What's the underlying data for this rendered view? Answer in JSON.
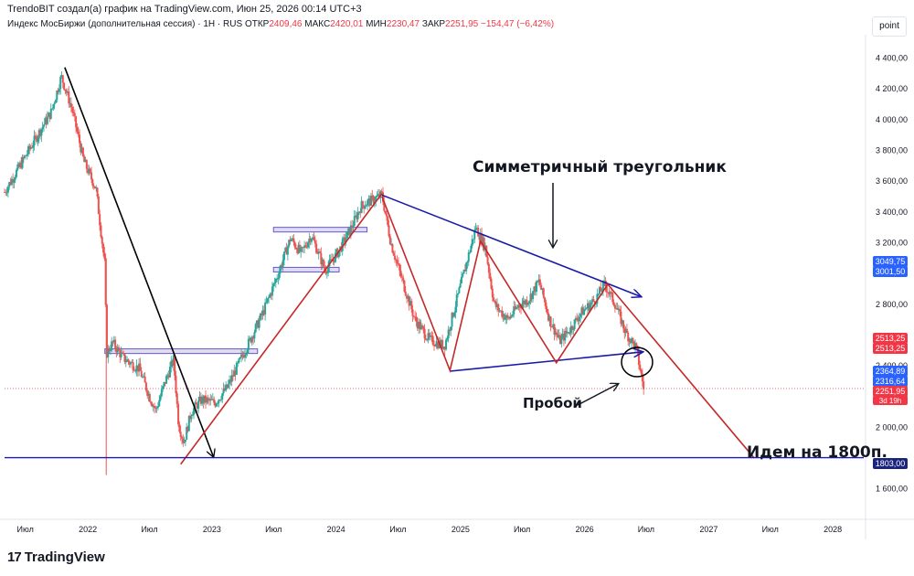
{
  "header": {
    "author_line": "TrendoBIT создал(а) график на TradingView.com, Июн 25, 2026 00:14 UTC+3"
  },
  "symbol": {
    "name": "Индекс МосБиржи (дополнительная сессия) · 1Н · RUS",
    "open_label": "ОТКР",
    "open": "2409,46",
    "high_label": "МАКС",
    "high": "2420,01",
    "low_label": "МИН",
    "low": "2230,47",
    "close_label": "ЗАКР",
    "close": "2251,95",
    "change": "−154,47 (−6,42%)"
  },
  "scale_mode": "point",
  "logo": {
    "text": "TradingView",
    "mark": "17"
  },
  "colors": {
    "up": "#26a69a",
    "down": "#ef5350",
    "red_line": "#c62828",
    "blue_line": "#1a1aa8",
    "black_line": "#000000"
  },
  "chart_data": {
    "type": "candlestick",
    "title": "",
    "x_axis_labels": [
      "Июл",
      "2022",
      "Июл",
      "2023",
      "Июл",
      "2024",
      "Июл",
      "2025",
      "Июл",
      "2026",
      "Июл",
      "2027",
      "Июл",
      "2028"
    ],
    "x_axis_dates": [
      "2021-07-01",
      "2022-01-01",
      "2022-07-01",
      "2023-01-01",
      "2023-07-01",
      "2024-01-01",
      "2024-07-01",
      "2025-01-01",
      "2025-07-01",
      "2026-01-01",
      "2026-07-01",
      "2027-01-01",
      "2027-07-01",
      "2028-01-01"
    ],
    "y_ticks": [
      1600,
      2000,
      2200,
      2400,
      2800,
      3200,
      3400,
      3600,
      3800,
      4000,
      4200,
      4400
    ],
    "y_tick_labels": [
      "1 600,00",
      "2 000,00",
      "2 200,00",
      "2 400,00",
      "2 800,00",
      "3 200,00",
      "3 400,00",
      "3 600,00",
      "3 800,00",
      "4 000,00",
      "4 200,00",
      "4 400,00"
    ],
    "ylim": [
      1420,
      4540
    ],
    "xlim": [
      "2021-05-01",
      "2028-04-01"
    ],
    "price_series": [
      [
        "2021-05-01",
        3530
      ],
      [
        "2021-06-15",
        3700
      ],
      [
        "2021-08-01",
        3880
      ],
      [
        "2021-09-15",
        4050
      ],
      [
        "2021-10-15",
        4280
      ],
      [
        "2021-11-15",
        4070
      ],
      [
        "2021-12-20",
        3730
      ],
      [
        "2022-01-25",
        3550
      ],
      [
        "2022-02-20",
        3050
      ],
      [
        "2022-02-25",
        2480
      ],
      [
        "2022-03-15",
        2550
      ],
      [
        "2022-04-15",
        2450
      ],
      [
        "2022-06-01",
        2380
      ],
      [
        "2022-07-01",
        2200
      ],
      [
        "2022-07-20",
        2110
      ],
      [
        "2022-08-15",
        2290
      ],
      [
        "2022-09-10",
        2440
      ],
      [
        "2022-09-25",
        2020
      ],
      [
        "2022-10-10",
        1900
      ],
      [
        "2022-11-01",
        2100
      ],
      [
        "2022-12-01",
        2180
      ],
      [
        "2023-01-10",
        2160
      ],
      [
        "2023-02-15",
        2260
      ],
      [
        "2023-04-15",
        2530
      ],
      [
        "2023-06-01",
        2750
      ],
      [
        "2023-07-15",
        3000
      ],
      [
        "2023-08-20",
        3230
      ],
      [
        "2023-09-20",
        3130
      ],
      [
        "2023-10-20",
        3250
      ],
      [
        "2023-11-30",
        3020
      ],
      [
        "2024-01-10",
        3150
      ],
      [
        "2024-02-15",
        3300
      ],
      [
        "2024-03-15",
        3440
      ],
      [
        "2024-05-15",
        3510
      ],
      [
        "2024-06-10",
        3200
      ],
      [
        "2024-07-10",
        2980
      ],
      [
        "2024-08-20",
        2700
      ],
      [
        "2024-10-01",
        2570
      ],
      [
        "2024-11-15",
        2530
      ],
      [
        "2024-12-20",
        2820
      ],
      [
        "2025-01-20",
        3080
      ],
      [
        "2025-02-15",
        3300
      ],
      [
        "2025-03-15",
        3170
      ],
      [
        "2025-04-10",
        2800
      ],
      [
        "2025-05-20",
        2700
      ],
      [
        "2025-06-20",
        2790
      ],
      [
        "2025-07-20",
        2830
      ],
      [
        "2025-08-20",
        2950
      ],
      [
        "2025-09-20",
        2700
      ],
      [
        "2025-10-20",
        2560
      ],
      [
        "2025-11-20",
        2640
      ],
      [
        "2025-12-20",
        2740
      ],
      [
        "2026-02-01",
        2830
      ],
      [
        "2026-03-01",
        2930
      ],
      [
        "2026-04-01",
        2800
      ],
      [
        "2026-05-01",
        2620
      ],
      [
        "2026-06-01",
        2520
      ],
      [
        "2026-06-24",
        2252
      ]
    ],
    "lines": [
      {
        "name": "downtrend",
        "color": "black",
        "from": [
          "2021-10-25",
          4340
        ],
        "to": [
          "2023-01-05",
          1810
        ],
        "arrow": true
      },
      {
        "name": "uptrend",
        "color": "red",
        "from": [
          "2022-10-01",
          1760
        ],
        "to": [
          "2024-05-15",
          3520
        ]
      },
      {
        "name": "triangle_top",
        "color": "blue",
        "from": [
          "2024-05-15",
          3510
        ],
        "to": [
          "2026-06-15",
          2850
        ],
        "arrow": true
      },
      {
        "name": "triangle_bottom",
        "color": "blue",
        "from": [
          "2024-12-01",
          2365
        ],
        "to": [
          "2026-06-20",
          2490
        ],
        "arrow": true
      },
      {
        "name": "zigzag",
        "color": "red",
        "points": [
          [
            "2024-05-15",
            3500
          ],
          [
            "2024-12-01",
            2370
          ],
          [
            "2025-03-01",
            3210
          ],
          [
            "2025-10-10",
            2420
          ],
          [
            "2026-03-10",
            2930
          ],
          [
            "2027-05-15",
            1800
          ]
        ]
      },
      {
        "name": "target",
        "color": "blue",
        "from": [
          "2021-05-01",
          1803
        ],
        "to": [
          "2028-04-01",
          1803
        ]
      }
    ],
    "zones": [
      {
        "low": 2480,
        "high": 2510,
        "from": "2022-02-20",
        "to": "2023-05-15"
      },
      {
        "low": 3270,
        "high": 3300,
        "from": "2023-07-01",
        "to": "2024-04-01"
      },
      {
        "low": 3010,
        "high": 3040,
        "from": "2023-07-01",
        "to": "2024-01-10"
      }
    ],
    "annotations": [
      {
        "text": "Симметричный треугольник"
      },
      {
        "text": "Пробой"
      },
      {
        "text": "Идем на 1800п."
      }
    ],
    "price_tags": [
      {
        "value": 3049.75,
        "label": "3049,75",
        "color": "#2962ff"
      },
      {
        "value": 3001.5,
        "label": "3001,50",
        "color": "#2962ff"
      },
      {
        "value": 2513.25,
        "label": "2513,25",
        "color": "#f23645"
      },
      {
        "value": 2513.25,
        "label": "2513,25",
        "color": "#f23645"
      },
      {
        "value": 2364.89,
        "label": "2364,89",
        "color": "#2962ff"
      },
      {
        "value": 2316.64,
        "label": "2316,64",
        "color": "#2962ff"
      },
      {
        "value": 2251.95,
        "label": "2251,95",
        "color": "#f23645"
      },
      {
        "value": 1803.0,
        "label": "1803,00",
        "color": "#131722"
      }
    ],
    "countdown": "3d 19h",
    "grid": false
  }
}
